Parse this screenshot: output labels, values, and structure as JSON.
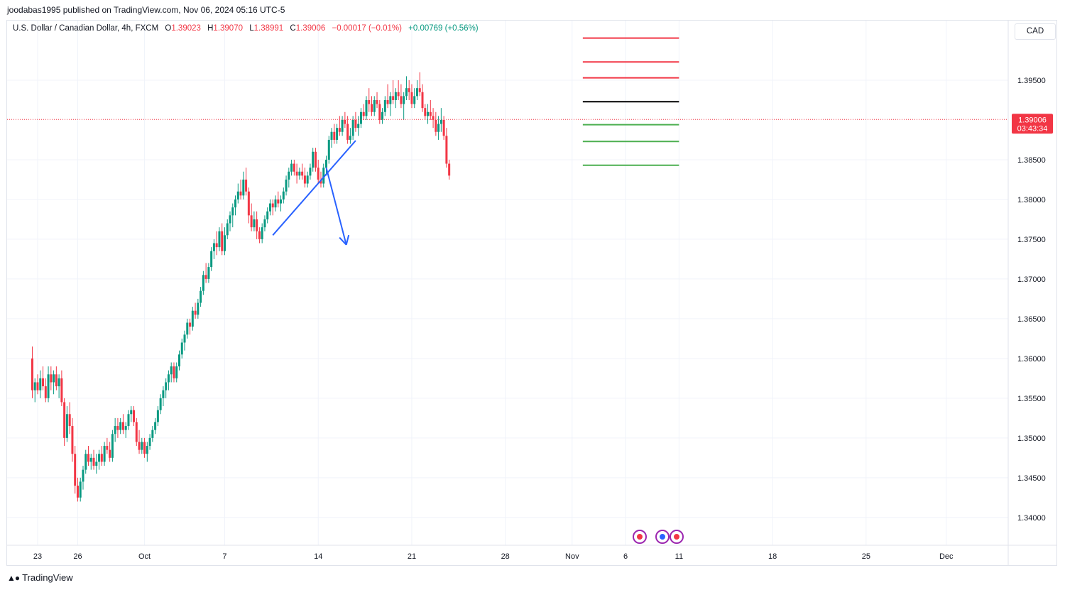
{
  "header": {
    "published": "joodabas1995 published on TradingView.com, Nov 06, 2024 05:16 UTC-5"
  },
  "legend": {
    "symbol": "U.S. Dollar / Canadian Dollar, 4h, FXCM",
    "o_label": "O",
    "o_value": "1.39023",
    "h_label": "H",
    "h_value": "1.39070",
    "l_label": "L",
    "l_value": "1.38991",
    "c_label": "C",
    "c_value": "1.39006",
    "change": "−0.00017 (−0.01%)",
    "change2": "+0.00769 (+0.56%)"
  },
  "currency_button": "CAD",
  "price_tag": {
    "price": "1.39006",
    "countdown": "03:43:34"
  },
  "footer": {
    "brand": "TradingView"
  },
  "colors": {
    "up": "#089981",
    "down": "#f23645",
    "drawing": "#2962ff",
    "resistance": "#f23645",
    "pivot": "#000000",
    "support": "#4caf50"
  },
  "chart_data": {
    "type": "candlestick",
    "ylim": [
      1.3365,
      1.4025
    ],
    "y_ticks": [
      "1.39500",
      "1.38500",
      "1.38000",
      "1.37500",
      "1.37000",
      "1.36500",
      "1.36000",
      "1.35500",
      "1.35000",
      "1.34500",
      "1.34000"
    ],
    "x_ticks": [
      "23",
      "26",
      "Oct",
      "7",
      "14",
      "21",
      "28",
      "Nov",
      "6",
      "11",
      "18",
      "25",
      "Dec"
    ],
    "x_tick_days": [
      0,
      3,
      8,
      14,
      21,
      28,
      35,
      40,
      44,
      48,
      55,
      62,
      68
    ],
    "last_day": 44.3,
    "horizontal_levels": [
      {
        "role": "resistance",
        "price": 1.4003,
        "from_day": 40.8,
        "to_day": 48
      },
      {
        "role": "resistance",
        "price": 1.3973,
        "from_day": 40.8,
        "to_day": 48
      },
      {
        "role": "resistance",
        "price": 1.3953,
        "from_day": 40.8,
        "to_day": 48
      },
      {
        "role": "pivot",
        "price": 1.3923,
        "from_day": 40.8,
        "to_day": 48
      },
      {
        "role": "support",
        "price": 1.3894,
        "from_day": 40.8,
        "to_day": 48
      },
      {
        "role": "support",
        "price": 1.3873,
        "from_day": 40.8,
        "to_day": 48
      },
      {
        "role": "support",
        "price": 1.3843,
        "from_day": 40.8,
        "to_day": 48
      }
    ],
    "trendline": {
      "from": {
        "day": 17.6,
        "price": 1.3755
      },
      "to": {
        "day": 23.8,
        "price": 1.3874
      }
    },
    "arrow": {
      "from": {
        "day": 21.6,
        "price": 1.384
      },
      "to": {
        "day": 23.1,
        "price": 1.3743
      }
    },
    "candles": [
      [
        -0.4,
        1.36,
        1.3615,
        1.355,
        1.356
      ],
      [
        -0.2,
        1.356,
        1.3575,
        1.3545,
        1.357
      ],
      [
        0,
        1.357,
        1.358,
        1.3555,
        1.356
      ],
      [
        0.2,
        1.356,
        1.3585,
        1.355,
        1.3575
      ],
      [
        0.4,
        1.3575,
        1.359,
        1.356,
        1.3565
      ],
      [
        0.6,
        1.3565,
        1.3575,
        1.3545,
        1.355
      ],
      [
        0.8,
        1.355,
        1.359,
        1.3545,
        1.358
      ],
      [
        1.0,
        1.358,
        1.359,
        1.356,
        1.357
      ],
      [
        1.2,
        1.357,
        1.3585,
        1.3555,
        1.358
      ],
      [
        1.4,
        1.358,
        1.359,
        1.356,
        1.3565
      ],
      [
        1.6,
        1.3565,
        1.358,
        1.355,
        1.3575
      ],
      [
        1.8,
        1.3575,
        1.3585,
        1.354,
        1.3545
      ],
      [
        2.0,
        1.3545,
        1.355,
        1.349,
        1.35
      ],
      [
        2.2,
        1.35,
        1.354,
        1.3495,
        1.353
      ],
      [
        2.4,
        1.353,
        1.3545,
        1.3505,
        1.3515
      ],
      [
        2.6,
        1.3515,
        1.3525,
        1.347,
        1.348
      ],
      [
        2.8,
        1.348,
        1.349,
        1.343,
        1.344
      ],
      [
        3.0,
        1.344,
        1.345,
        1.342,
        1.3425
      ],
      [
        3.2,
        1.3425,
        1.345,
        1.342,
        1.3445
      ],
      [
        3.4,
        1.3445,
        1.3465,
        1.3435,
        1.346
      ],
      [
        3.6,
        1.346,
        1.3485,
        1.3455,
        1.348
      ],
      [
        3.8,
        1.348,
        1.349,
        1.3465,
        1.347
      ],
      [
        4.0,
        1.347,
        1.348,
        1.346,
        1.3475
      ],
      [
        4.2,
        1.3475,
        1.3485,
        1.346,
        1.3465
      ],
      [
        4.4,
        1.3465,
        1.348,
        1.3455,
        1.347
      ],
      [
        4.6,
        1.347,
        1.3485,
        1.346,
        1.348
      ],
      [
        4.8,
        1.348,
        1.349,
        1.3465,
        1.347
      ],
      [
        5.0,
        1.347,
        1.3495,
        1.3465,
        1.349
      ],
      [
        5.2,
        1.349,
        1.35,
        1.348,
        1.3485
      ],
      [
        5.4,
        1.3485,
        1.3495,
        1.347,
        1.3475
      ],
      [
        5.6,
        1.3475,
        1.351,
        1.347,
        1.3505
      ],
      [
        5.8,
        1.3505,
        1.3525,
        1.3495,
        1.3515
      ],
      [
        6.0,
        1.3515,
        1.3525,
        1.35,
        1.351
      ],
      [
        6.2,
        1.351,
        1.3525,
        1.3505,
        1.352
      ],
      [
        6.4,
        1.352,
        1.353,
        1.3505,
        1.351
      ],
      [
        6.6,
        1.351,
        1.352,
        1.35,
        1.3515
      ],
      [
        6.8,
        1.3515,
        1.3535,
        1.351,
        1.353
      ],
      [
        7.0,
        1.353,
        1.354,
        1.352,
        1.3535
      ],
      [
        7.2,
        1.3535,
        1.354,
        1.3515,
        1.352
      ],
      [
        7.4,
        1.352,
        1.3525,
        1.349,
        1.3495
      ],
      [
        7.6,
        1.3495,
        1.351,
        1.348,
        1.3485
      ],
      [
        7.8,
        1.3485,
        1.35,
        1.348,
        1.3495
      ],
      [
        8.0,
        1.3495,
        1.35,
        1.3475,
        1.348
      ],
      [
        8.2,
        1.348,
        1.3495,
        1.347,
        1.349
      ],
      [
        8.4,
        1.349,
        1.3505,
        1.3485,
        1.35
      ],
      [
        8.6,
        1.35,
        1.3515,
        1.3495,
        1.351
      ],
      [
        8.8,
        1.351,
        1.3525,
        1.3505,
        1.352
      ],
      [
        9.0,
        1.352,
        1.354,
        1.3515,
        1.3535
      ],
      [
        9.2,
        1.3535,
        1.3555,
        1.353,
        1.355
      ],
      [
        9.4,
        1.355,
        1.3565,
        1.354,
        1.356
      ],
      [
        9.6,
        1.356,
        1.3575,
        1.355,
        1.357
      ],
      [
        9.8,
        1.357,
        1.3585,
        1.356,
        1.358
      ],
      [
        10.0,
        1.358,
        1.3595,
        1.357,
        1.359
      ],
      [
        10.2,
        1.359,
        1.3595,
        1.357,
        1.3575
      ],
      [
        10.4,
        1.3575,
        1.3595,
        1.357,
        1.359
      ],
      [
        10.6,
        1.359,
        1.361,
        1.3585,
        1.3605
      ],
      [
        10.8,
        1.3605,
        1.3625,
        1.36,
        1.362
      ],
      [
        11.0,
        1.362,
        1.3635,
        1.361,
        1.363
      ],
      [
        11.2,
        1.363,
        1.365,
        1.3625,
        1.3645
      ],
      [
        11.4,
        1.3645,
        1.365,
        1.363,
        1.364
      ],
      [
        11.6,
        1.364,
        1.3665,
        1.3635,
        1.366
      ],
      [
        11.8,
        1.366,
        1.367,
        1.365,
        1.3655
      ],
      [
        12.0,
        1.3655,
        1.3675,
        1.365,
        1.367
      ],
      [
        12.2,
        1.367,
        1.369,
        1.3665,
        1.3685
      ],
      [
        12.4,
        1.3685,
        1.371,
        1.368,
        1.3705
      ],
      [
        12.6,
        1.3705,
        1.372,
        1.3695,
        1.37
      ],
      [
        12.8,
        1.37,
        1.372,
        1.3695,
        1.3715
      ],
      [
        13.0,
        1.3715,
        1.374,
        1.371,
        1.3735
      ],
      [
        13.2,
        1.3735,
        1.375,
        1.3725,
        1.3745
      ],
      [
        13.4,
        1.3745,
        1.376,
        1.373,
        1.374
      ],
      [
        13.6,
        1.374,
        1.3765,
        1.3735,
        1.376
      ],
      [
        13.8,
        1.376,
        1.377,
        1.373,
        1.3735
      ],
      [
        14.0,
        1.3735,
        1.3765,
        1.373,
        1.3755
      ],
      [
        14.2,
        1.3755,
        1.3775,
        1.375,
        1.377
      ],
      [
        14.4,
        1.377,
        1.3785,
        1.376,
        1.378
      ],
      [
        14.6,
        1.378,
        1.3795,
        1.3765,
        1.379
      ],
      [
        14.8,
        1.379,
        1.3805,
        1.378,
        1.38
      ],
      [
        15.0,
        1.38,
        1.382,
        1.3795,
        1.381
      ],
      [
        15.2,
        1.381,
        1.3825,
        1.38,
        1.3805
      ],
      [
        15.4,
        1.3805,
        1.3835,
        1.38,
        1.3825
      ],
      [
        15.6,
        1.3825,
        1.384,
        1.3805,
        1.381
      ],
      [
        15.8,
        1.381,
        1.3815,
        1.377,
        1.378
      ],
      [
        16.0,
        1.378,
        1.3795,
        1.376,
        1.3765
      ],
      [
        16.2,
        1.3765,
        1.3785,
        1.376,
        1.3775
      ],
      [
        16.4,
        1.3775,
        1.3785,
        1.375,
        1.376
      ],
      [
        16.6,
        1.376,
        1.3765,
        1.3745,
        1.375
      ],
      [
        16.8,
        1.375,
        1.377,
        1.3745,
        1.3765
      ],
      [
        17.0,
        1.3765,
        1.378,
        1.376,
        1.3775
      ],
      [
        17.2,
        1.3775,
        1.379,
        1.377,
        1.3785
      ],
      [
        17.4,
        1.3785,
        1.38,
        1.378,
        1.3795
      ],
      [
        17.6,
        1.3795,
        1.38,
        1.378,
        1.379
      ],
      [
        17.8,
        1.379,
        1.3805,
        1.3785,
        1.38
      ],
      [
        18.0,
        1.38,
        1.381,
        1.379,
        1.3795
      ],
      [
        18.2,
        1.3795,
        1.3805,
        1.3785,
        1.38
      ],
      [
        18.4,
        1.38,
        1.3815,
        1.3795,
        1.381
      ],
      [
        18.6,
        1.381,
        1.383,
        1.3805,
        1.3825
      ],
      [
        18.8,
        1.3825,
        1.384,
        1.3815,
        1.3835
      ],
      [
        19.0,
        1.3835,
        1.385,
        1.383,
        1.3845
      ],
      [
        19.2,
        1.3845,
        1.385,
        1.383,
        1.3835
      ],
      [
        19.4,
        1.3835,
        1.3845,
        1.382,
        1.383
      ],
      [
        19.6,
        1.383,
        1.384,
        1.3825,
        1.3835
      ],
      [
        19.8,
        1.3835,
        1.3845,
        1.3825,
        1.383
      ],
      [
        20.0,
        1.383,
        1.384,
        1.3815,
        1.382
      ],
      [
        20.2,
        1.382,
        1.3835,
        1.3815,
        1.383
      ],
      [
        20.4,
        1.383,
        1.3845,
        1.3825,
        1.384
      ],
      [
        20.6,
        1.384,
        1.3865,
        1.3835,
        1.386
      ],
      [
        20.8,
        1.386,
        1.3865,
        1.3835,
        1.384
      ],
      [
        21.0,
        1.384,
        1.385,
        1.382,
        1.3825
      ],
      [
        21.2,
        1.3825,
        1.3835,
        1.3815,
        1.382
      ],
      [
        21.4,
        1.382,
        1.3845,
        1.3815,
        1.384
      ],
      [
        21.6,
        1.384,
        1.3855,
        1.383,
        1.385
      ],
      [
        21.8,
        1.385,
        1.388,
        1.3845,
        1.3875
      ],
      [
        22.0,
        1.3875,
        1.389,
        1.3865,
        1.3885
      ],
      [
        22.2,
        1.3885,
        1.3895,
        1.387,
        1.3875
      ],
      [
        22.4,
        1.3875,
        1.3895,
        1.387,
        1.389
      ],
      [
        22.6,
        1.389,
        1.3905,
        1.388,
        1.3885
      ],
      [
        22.8,
        1.3885,
        1.3905,
        1.388,
        1.39
      ],
      [
        23.0,
        1.39,
        1.391,
        1.389,
        1.3895
      ],
      [
        23.2,
        1.3895,
        1.3905,
        1.387,
        1.3875
      ],
      [
        23.4,
        1.3875,
        1.389,
        1.387,
        1.388
      ],
      [
        23.6,
        1.388,
        1.3905,
        1.3875,
        1.39
      ],
      [
        23.8,
        1.39,
        1.391,
        1.3885,
        1.389
      ],
      [
        24.0,
        1.389,
        1.3905,
        1.388,
        1.3895
      ],
      [
        24.2,
        1.3895,
        1.3915,
        1.389,
        1.391
      ],
      [
        24.4,
        1.391,
        1.392,
        1.39,
        1.3905
      ],
      [
        24.6,
        1.3905,
        1.393,
        1.39,
        1.3925
      ],
      [
        24.8,
        1.3925,
        1.394,
        1.391,
        1.392
      ],
      [
        25.0,
        1.392,
        1.393,
        1.3905,
        1.391
      ],
      [
        25.2,
        1.391,
        1.393,
        1.3905,
        1.3925
      ],
      [
        25.4,
        1.3925,
        1.3935,
        1.3915,
        1.392
      ],
      [
        25.6,
        1.392,
        1.3925,
        1.3895,
        1.39
      ],
      [
        25.8,
        1.39,
        1.3915,
        1.3895,
        1.391
      ],
      [
        26.0,
        1.391,
        1.393,
        1.3905,
        1.3925
      ],
      [
        26.2,
        1.3925,
        1.3945,
        1.3915,
        1.392
      ],
      [
        26.4,
        1.392,
        1.3935,
        1.3905,
        1.393
      ],
      [
        26.6,
        1.393,
        1.395,
        1.392,
        1.3925
      ],
      [
        26.8,
        1.3925,
        1.394,
        1.3915,
        1.3935
      ],
      [
        27.0,
        1.3935,
        1.395,
        1.3925,
        1.393
      ],
      [
        27.2,
        1.393,
        1.3945,
        1.3915,
        1.392
      ],
      [
        27.4,
        1.392,
        1.3935,
        1.39,
        1.393
      ],
      [
        27.6,
        1.393,
        1.3955,
        1.3925,
        1.394
      ],
      [
        27.8,
        1.394,
        1.395,
        1.3925,
        1.3935
      ],
      [
        28.0,
        1.3935,
        1.3945,
        1.3915,
        1.392
      ],
      [
        28.2,
        1.392,
        1.394,
        1.3915,
        1.393
      ],
      [
        28.4,
        1.393,
        1.395,
        1.3925,
        1.394
      ],
      [
        28.6,
        1.394,
        1.396,
        1.393,
        1.3935
      ],
      [
        28.8,
        1.3935,
        1.3945,
        1.391,
        1.3915
      ],
      [
        29.0,
        1.3915,
        1.392,
        1.39,
        1.3905
      ],
      [
        29.2,
        1.3905,
        1.392,
        1.3895,
        1.391
      ],
      [
        29.4,
        1.391,
        1.3925,
        1.39,
        1.3905
      ],
      [
        29.6,
        1.3905,
        1.3915,
        1.389,
        1.39
      ],
      [
        29.8,
        1.39,
        1.391,
        1.388,
        1.3885
      ],
      [
        30.0,
        1.3885,
        1.3905,
        1.3875,
        1.3895
      ],
      [
        30.2,
        1.3895,
        1.3915,
        1.3885,
        1.39
      ],
      [
        30.4,
        1.39,
        1.3905,
        1.3875,
        1.388
      ],
      [
        30.6,
        1.388,
        1.389,
        1.384,
        1.3845
      ],
      [
        30.8,
        1.3845,
        1.385,
        1.3825,
        1.383
      ]
    ]
  }
}
